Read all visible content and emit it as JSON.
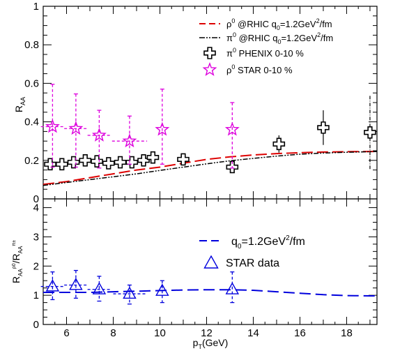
{
  "chart_data": [
    {
      "type": "scatter",
      "ylabel": "R_AA",
      "xlim": [
        5,
        19.3
      ],
      "ylim": [
        0,
        1
      ],
      "y_ticks": [
        "0",
        "0.2",
        "0.4",
        "0.6",
        "0.8",
        "1"
      ],
      "legend_position": "top-right",
      "legend": [
        {
          "label": "ρ⁰ @RHIC q₀=1.2GeV²/fm",
          "style": "dashed-red-line"
        },
        {
          "label": "π⁰ @RHIC q₀=1.2GeV²/fm",
          "style": "dash-dot-black-line"
        },
        {
          "label": "π⁰ PHENIX 0-10 %",
          "style": "open-cross-marker"
        },
        {
          "label": "ρ⁰ STAR 0-10 %",
          "style": "open-star-marker"
        }
      ],
      "series": [
        {
          "name": "ρ⁰ @RHIC q₀=1.2GeV²/fm",
          "kind": "line",
          "color": "#dd0000",
          "x": [
            5,
            6,
            7,
            8,
            9,
            10,
            11,
            12,
            13,
            14,
            15,
            16,
            17,
            18,
            19,
            19.3
          ],
          "y": [
            0.075,
            0.09,
            0.11,
            0.13,
            0.15,
            0.165,
            0.185,
            0.205,
            0.218,
            0.228,
            0.235,
            0.24,
            0.243,
            0.245,
            0.246,
            0.246
          ]
        },
        {
          "name": "π⁰ @RHIC q₀=1.2GeV²/fm",
          "kind": "line",
          "color": "#000000",
          "x": [
            5,
            6,
            7,
            8,
            9,
            10,
            11,
            12,
            13,
            14,
            15,
            16,
            17,
            18,
            19,
            19.3
          ],
          "y": [
            0.07,
            0.085,
            0.1,
            0.115,
            0.13,
            0.148,
            0.165,
            0.182,
            0.198,
            0.21,
            0.222,
            0.232,
            0.238,
            0.242,
            0.245,
            0.246
          ]
        },
        {
          "name": "π⁰ PHENIX 0-10 %",
          "kind": "cross",
          "color": "#000000",
          "x": [
            5.3,
            5.8,
            6.3,
            6.8,
            7.3,
            7.8,
            8.3,
            8.8,
            9.3,
            9.7,
            11,
            13.1,
            15.1,
            17,
            19
          ],
          "y": [
            0.18,
            0.18,
            0.19,
            0.2,
            0.195,
            0.185,
            0.19,
            0.19,
            0.2,
            0.215,
            0.205,
            0.165,
            0.285,
            0.37,
            0.345
          ],
          "yerr": [
            0.01,
            0.01,
            0.01,
            0.01,
            0.01,
            0.01,
            0.01,
            0.01,
            0.01,
            0.012,
            0.015,
            0.03,
            0.045,
            0.09,
            0.19
          ],
          "xerr": [
            0.2,
            0.2,
            0.2,
            0.2,
            0.2,
            0.2,
            0.2,
            0.2,
            0.2,
            0.2,
            0.3,
            0.3,
            0,
            0,
            0
          ]
        },
        {
          "name": "ρ⁰ STAR 0-10 %",
          "kind": "star",
          "color": "#dd00dd",
          "x": [
            5.4,
            6.4,
            7.4,
            8.7,
            10.1,
            13.1
          ],
          "y": [
            0.375,
            0.365,
            0.33,
            0.3,
            0.36,
            0.36
          ],
          "yerr_low": [
            0.21,
            0.2,
            0.17,
            0.12,
            0.18,
            0.2
          ],
          "yerr_high": [
            0.22,
            0.18,
            0.13,
            0.13,
            0.21,
            0.14
          ],
          "xerr": [
            0.5,
            0.5,
            0.5,
            0.75,
            0,
            0
          ]
        }
      ]
    },
    {
      "type": "scatter",
      "xlabel": "p_T(GeV)",
      "ylabel": "R_AA^ρ0 / R_AA^π±",
      "xlim": [
        5,
        19.3
      ],
      "ylim": [
        0,
        4.3
      ],
      "x_ticks": [
        "6",
        "8",
        "10",
        "12",
        "14",
        "16",
        "18"
      ],
      "y_ticks": [
        "0",
        "1",
        "2",
        "3",
        "4"
      ],
      "legend_position": "right",
      "legend": [
        {
          "label": "q₀=1.2GeV²/fm",
          "style": "dashed-blue-line"
        },
        {
          "label": "STAR data",
          "style": "open-triangle-marker"
        }
      ],
      "series": [
        {
          "name": "q₀=1.2GeV²/fm",
          "kind": "line",
          "color": "#0000dd",
          "x": [
            5,
            6,
            7,
            8,
            9,
            10,
            11,
            12,
            13,
            14,
            15,
            16,
            17,
            18,
            19,
            19.3
          ],
          "y": [
            1.1,
            1.1,
            1.1,
            1.12,
            1.14,
            1.16,
            1.18,
            1.19,
            1.19,
            1.17,
            1.12,
            1.07,
            1.02,
            0.99,
            0.98,
            0.98
          ]
        },
        {
          "name": "STAR data",
          "kind": "triangle",
          "color": "#0000dd",
          "x": [
            5.4,
            6.4,
            7.4,
            8.7,
            10.1,
            13.1
          ],
          "y": [
            1.3,
            1.35,
            1.2,
            1.05,
            1.15,
            1.2
          ],
          "yerr_low": [
            0.45,
            0.45,
            0.4,
            0.35,
            0.4,
            0.45
          ],
          "yerr_high": [
            0.5,
            0.5,
            0.45,
            0.3,
            0.35,
            0.6
          ],
          "xerr": [
            0.5,
            0.5,
            0.5,
            0.7,
            0,
            0
          ]
        }
      ]
    }
  ]
}
